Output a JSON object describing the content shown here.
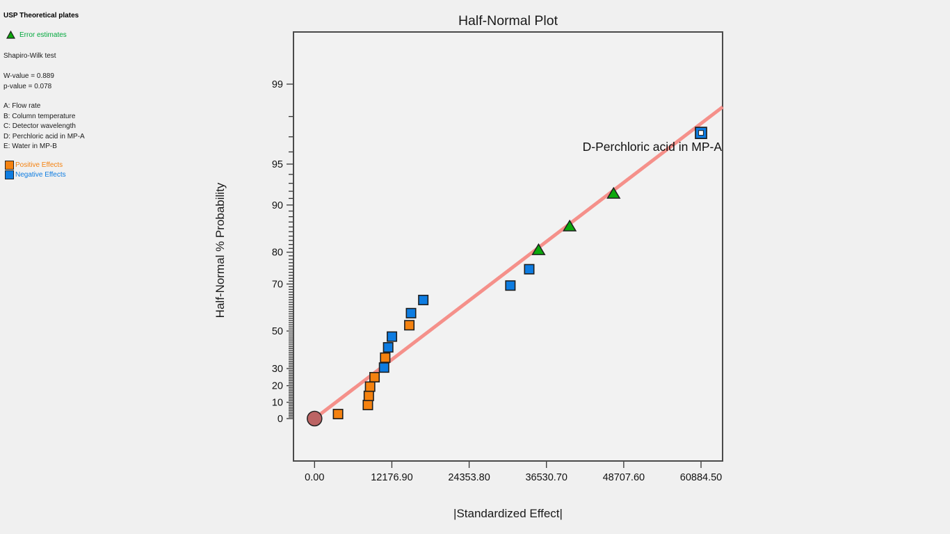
{
  "sidebar": {
    "title": "USP Theoretical plates",
    "error_legend_label": "Error estimates",
    "shapiro_heading": "Shapiro-Wilk test",
    "w_value": "W-value = 0.889",
    "p_value": "p-value = 0.078",
    "factors": [
      "A: Flow rate",
      "B: Column temperature",
      "C: Detector wavelength",
      "D: Perchloric acid in MP-A",
      "E: Water in MP-B"
    ],
    "positive_label": "Positive Effects",
    "negative_label": "Negative Effects"
  },
  "chart_data": {
    "type": "scatter",
    "title": "Half-Normal Plot",
    "xlabel": "|Standardized Effect|",
    "ylabel": "Half-Normal % Probability",
    "grid": false,
    "legend_position": "left-panel",
    "x_axis": {
      "ticks": [
        0,
        12176.9,
        24353.8,
        36530.7,
        48707.6,
        60884.5
      ],
      "tick_labels": [
        "0.00",
        "12176.90",
        "24353.80",
        "36530.70",
        "48707.60",
        "60884.50"
      ],
      "range": [
        -3300,
        64400
      ]
    },
    "y_axis": {
      "scale": "half-normal-probability",
      "major_ticks": [
        0,
        10,
        20,
        30,
        50,
        70,
        80,
        90,
        95,
        99
      ],
      "minor_tick_step_percent": 1,
      "range_z": [
        -0.33,
        2.98
      ]
    },
    "points": [
      {
        "effect": 3700,
        "probability": 2.78,
        "series": "positive"
      },
      {
        "effect": 8400,
        "probability": 8.33,
        "series": "positive"
      },
      {
        "effect": 8550,
        "probability": 13.89,
        "series": "positive"
      },
      {
        "effect": 8750,
        "probability": 19.44,
        "series": "positive"
      },
      {
        "effect": 9450,
        "probability": 25.0,
        "series": "positive"
      },
      {
        "effect": 10950,
        "probability": 30.56,
        "series": "negative"
      },
      {
        "effect": 11130,
        "probability": 36.11,
        "series": "positive"
      },
      {
        "effect": 11600,
        "probability": 41.67,
        "series": "negative"
      },
      {
        "effect": 12190,
        "probability": 47.22,
        "series": "negative"
      },
      {
        "effect": 14930,
        "probability": 52.78,
        "series": "positive"
      },
      {
        "effect": 15200,
        "probability": 58.33,
        "series": "negative"
      },
      {
        "effect": 17130,
        "probability": 63.89,
        "series": "negative"
      },
      {
        "effect": 30850,
        "probability": 69.44,
        "series": "negative"
      },
      {
        "effect": 33820,
        "probability": 75.0,
        "series": "negative"
      },
      {
        "effect": 35290,
        "probability": 80.56,
        "series": "error"
      },
      {
        "effect": 40190,
        "probability": 86.11,
        "series": "error"
      },
      {
        "effect": 47110,
        "probability": 91.67,
        "series": "error"
      },
      {
        "effect": 60884.5,
        "probability": 97.22,
        "series": "negative",
        "selected": true,
        "label": "D-Perchloric acid in MP-A"
      }
    ],
    "annotation": {
      "text": "D-Perchloric acid in MP-A",
      "effect": 60884.5,
      "probability": 97.22
    },
    "origin_marker": {
      "effect": 0,
      "probability": 0
    },
    "fit_line": {
      "from": {
        "effect": 0,
        "z": 0
      },
      "to": {
        "effect": 64300,
        "z": 2.4
      }
    },
    "colors": {
      "background": "#f0f0f0",
      "plot_fill": "#f2f2f2",
      "frame": "#4a4a4a",
      "positive": "#f5820f",
      "negative": "#0d7ce1",
      "error": "#0ca80c",
      "fit_line": "#f5908a",
      "origin": "#bc6464",
      "marker_stroke": "#1f1f1f",
      "sidebar_green": "#00a83c"
    }
  }
}
